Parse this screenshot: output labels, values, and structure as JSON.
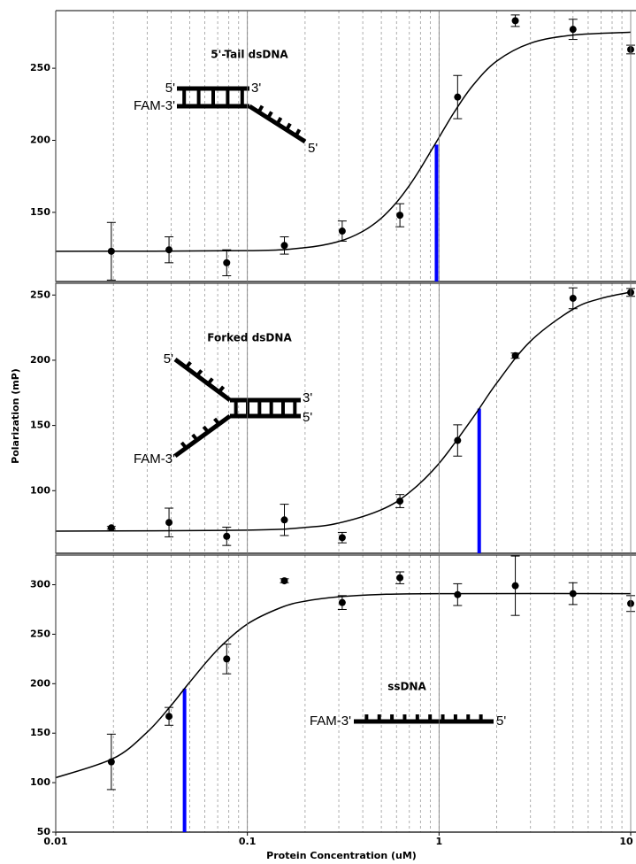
{
  "shared_x": {
    "xlim": [
      0.01,
      10
    ],
    "log_x": true,
    "xticks": [
      0.01,
      0.1,
      1,
      10
    ],
    "xgrid": [
      0.02,
      0.03,
      0.04,
      0.05,
      0.06,
      0.07,
      0.08,
      0.09,
      0.1,
      0.2,
      0.3,
      0.4,
      0.5,
      0.6,
      0.7,
      0.8,
      0.9,
      1,
      2,
      3,
      4,
      5,
      6,
      7,
      8,
      9
    ],
    "xlabel": "Protein Concentration (uM)",
    "ylabel": "Polarization (mP)"
  },
  "chart_data": [
    {
      "type": "scatter",
      "title": "5'-Tail dsDNA",
      "diagram": [
        "5'",
        "3'",
        "FAM-3'",
        "5'"
      ],
      "ylim": [
        102,
        290
      ],
      "yticks": [
        150,
        200,
        250
      ],
      "color": "#000000",
      "marker_color": "#0000ff",
      "x": [
        0.0195,
        0.039,
        0.078,
        0.156,
        0.3125,
        0.625,
        1.25,
        2.5,
        5,
        10
      ],
      "values": [
        123,
        124,
        115,
        127,
        137,
        148,
        230,
        283,
        277,
        263
      ],
      "errors": [
        20,
        9,
        9,
        6,
        7,
        8,
        15,
        4,
        7,
        3
      ],
      "fit": {
        "x": [
          0.01,
          0.1,
          0.2,
          0.3,
          0.4,
          0.5,
          0.6,
          0.7,
          0.8,
          1,
          1.2,
          1.5,
          2,
          3,
          5,
          10
        ],
        "values": [
          123,
          123.4,
          125.5,
          129.8,
          136.8,
          146,
          156.9,
          168.6,
          180.4,
          202,
          219.5,
          238,
          255,
          267.4,
          273,
          275
        ]
      },
      "marker": {
        "x": 0.97,
        "y": 197
      }
    },
    {
      "type": "scatter",
      "title": "Forked dsDNA",
      "diagram": [
        "5'",
        "3'",
        "5'",
        "FAM-3'"
      ],
      "ylim": [
        52,
        259
      ],
      "yticks": [
        100,
        150,
        200,
        250
      ],
      "color": "#000000",
      "marker_color": "#0000ff",
      "x": [
        0.0195,
        0.039,
        0.078,
        0.156,
        0.3125,
        0.625,
        1.25,
        2.5,
        5,
        10
      ],
      "values": [
        71.5,
        75.6,
        65,
        77.6,
        64,
        92,
        138.5,
        203.5,
        247.5,
        252
      ],
      "errors": [
        1,
        11,
        7,
        12,
        4,
        5,
        12,
        2,
        8,
        3
      ],
      "fit": {
        "x": [
          0.01,
          0.1,
          0.2,
          0.3,
          0.5,
          0.7,
          1,
          1.5,
          2,
          3,
          5,
          7,
          10
        ],
        "values": [
          69,
          69.7,
          71.8,
          75.2,
          85.4,
          98.6,
          120.9,
          155.8,
          182.5,
          214.6,
          239.1,
          247.4,
          252.2
        ]
      },
      "marker": {
        "x": 1.62,
        "y": 163
      }
    },
    {
      "type": "scatter",
      "title": "ssDNA",
      "diagram": [
        "FAM-3'",
        "5'"
      ],
      "ylim": [
        50,
        330
      ],
      "yticks": [
        50,
        100,
        150,
        200,
        250,
        300
      ],
      "color": "#000000",
      "marker_color": "#0000ff",
      "x": [
        0.0195,
        0.039,
        0.078,
        0.156,
        0.3125,
        0.625,
        1.25,
        2.5,
        5,
        10
      ],
      "values": [
        121,
        167,
        225,
        304,
        282,
        307,
        290,
        299,
        291,
        281
      ],
      "errors": [
        28,
        9,
        15,
        2,
        7,
        6,
        11,
        30,
        11,
        8
      ],
      "fit": {
        "x": [
          0.01,
          0.02,
          0.03,
          0.04,
          0.05,
          0.07,
          0.1,
          0.15,
          0.2,
          0.3,
          0.5,
          1,
          10
        ],
        "values": [
          105,
          124.5,
          151,
          178,
          201.5,
          234.5,
          260.3,
          277,
          283.4,
          287.8,
          290.2,
          291,
          291
        ]
      },
      "marker": {
        "x": 0.047,
        "y": 195
      }
    }
  ]
}
